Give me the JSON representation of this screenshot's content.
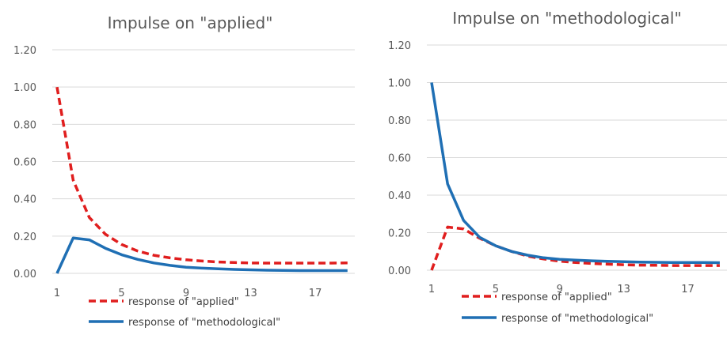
{
  "colors": {
    "applied": "#e01e1e",
    "methodological": "#1f6fb4",
    "grid": "#d9d9d9",
    "text": "#595959"
  },
  "chart_data": [
    {
      "type": "line",
      "title": "Impulse on \"applied\"",
      "xlabel": "",
      "ylabel": "",
      "x": [
        1,
        2,
        3,
        4,
        5,
        6,
        7,
        8,
        9,
        10,
        11,
        12,
        13,
        14,
        15,
        16,
        17,
        18,
        19
      ],
      "x_ticks": [
        "1",
        "5",
        "9",
        "13",
        "17"
      ],
      "y_ticks": [
        "0.00",
        "0.20",
        "0.40",
        "0.60",
        "0.80",
        "1.00",
        "1.20"
      ],
      "ylim": [
        0,
        1.2
      ],
      "grid": true,
      "legend_position": "bottom",
      "series": [
        {
          "name": "response of \"applied\"",
          "style": "dashed",
          "values": [
            1.0,
            0.5,
            0.3,
            0.21,
            0.155,
            0.12,
            0.097,
            0.083,
            0.073,
            0.066,
            0.061,
            0.058,
            0.056,
            0.055,
            0.055,
            0.055,
            0.055,
            0.055,
            0.056
          ]
        },
        {
          "name": "response of \"methodological\"",
          "style": "solid",
          "values": [
            0.0,
            0.19,
            0.18,
            0.135,
            0.1,
            0.075,
            0.056,
            0.043,
            0.033,
            0.028,
            0.024,
            0.021,
            0.019,
            0.017,
            0.016,
            0.015,
            0.015,
            0.015,
            0.015
          ]
        }
      ]
    },
    {
      "type": "line",
      "title": "Impulse on \"methodological\"",
      "xlabel": "",
      "ylabel": "",
      "x": [
        1,
        2,
        3,
        4,
        5,
        6,
        7,
        8,
        9,
        10,
        11,
        12,
        13,
        14,
        15,
        16,
        17,
        18,
        19
      ],
      "x_ticks": [
        "1",
        "5",
        "9",
        "13",
        "17"
      ],
      "y_ticks": [
        "0.00",
        "0.20",
        "0.40",
        "0.60",
        "0.80",
        "1.00",
        "1.20"
      ],
      "ylim": [
        0,
        1.2
      ],
      "grid": true,
      "legend_position": "bottom",
      "series": [
        {
          "name": "response of \"applied\"",
          "style": "dashed",
          "values": [
            0.0,
            0.23,
            0.22,
            0.17,
            0.13,
            0.1,
            0.075,
            0.06,
            0.048,
            0.041,
            0.036,
            0.032,
            0.029,
            0.027,
            0.026,
            0.025,
            0.025,
            0.025,
            0.025
          ]
        },
        {
          "name": "response of \"methodological\"",
          "style": "solid",
          "values": [
            1.0,
            0.46,
            0.265,
            0.175,
            0.13,
            0.1,
            0.08,
            0.066,
            0.058,
            0.054,
            0.05,
            0.047,
            0.045,
            0.043,
            0.042,
            0.041,
            0.041,
            0.041,
            0.04
          ]
        }
      ]
    }
  ]
}
